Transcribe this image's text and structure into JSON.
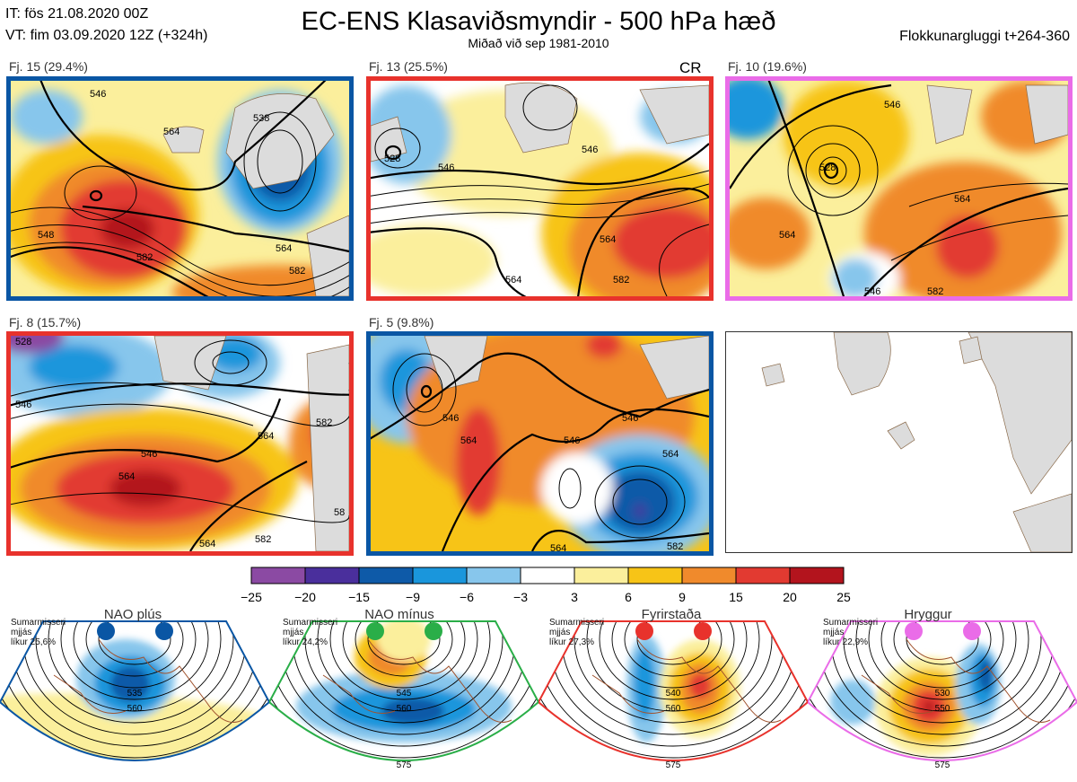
{
  "header": {
    "it_line": "IT: fös 21.08.2020 00Z",
    "vt_line": "VT: fim 03.09.2020 12Z  (+324h)",
    "title": "EC-ENS Klasaviðsmyndir - 500 hPa hæð",
    "subtitle": "Miðað við sep 1981-2010",
    "window": "Flokkunargluggi t+264-360"
  },
  "clusters": [
    {
      "label": "Fj. 15 (29.4%)",
      "border_color": "#0a56a4",
      "contours": [
        "546",
        "538",
        "564",
        "548",
        "546",
        "564",
        "582",
        "582"
      ]
    },
    {
      "label": "Fj. 13 (25.5%)",
      "border_color": "#e8322c",
      "tag": "CR",
      "contours": [
        "528",
        "546",
        "546",
        "564",
        "564",
        "582"
      ]
    },
    {
      "label": "Fj. 10 (19.6%)",
      "border_color": "#ea6ce8",
      "contours": [
        "546",
        "528",
        "564",
        "564",
        "546",
        "582"
      ]
    },
    {
      "label": "Fj. 8 (15.7%)",
      "border_color": "#e8322c",
      "contours": [
        "528",
        "546",
        "546",
        "564",
        "582",
        "564",
        "582",
        "564",
        "58"
      ]
    },
    {
      "label": "Fj. 5 (9.8%)",
      "border_color": "#0a56a4",
      "contours": [
        "546",
        "546",
        "564",
        "546",
        "564",
        "564",
        "582"
      ]
    }
  ],
  "colorbar": {
    "ticks": [
      "−25",
      "−20",
      "−15",
      "−9",
      "−6",
      "−3",
      "3",
      "6",
      "9",
      "15",
      "20",
      "25"
    ],
    "colors": [
      "#8b4aa3",
      "#4a2f9c",
      "#0e5aa8",
      "#1a96dc",
      "#87c6ec",
      "#ffffff",
      "#fbef9c",
      "#f7c417",
      "#f08a2c",
      "#e23a31",
      "#b3141d"
    ]
  },
  "regimes": [
    {
      "name": "NAO plús",
      "season": "Sumarmisseri",
      "mean": "mjjás",
      "prob": "líkur 25,6%",
      "color": "#0a56a4",
      "contours": [
        "535",
        "560"
      ]
    },
    {
      "name": "NAO mínus",
      "season": "Sumarmisseri",
      "mean": "mjjás",
      "prob": "líkur 24,2%",
      "color": "#2aae48",
      "contours": [
        "545",
        "560",
        "575"
      ]
    },
    {
      "name": "Fyrirstaða",
      "season": "Sumarmisseri",
      "mean": "mjjás",
      "prob": "líkur 27,3%",
      "color": "#e8322c",
      "contours": [
        "540",
        "560",
        "575"
      ]
    },
    {
      "name": "Hryggur",
      "season": "Sumarmisseri",
      "mean": "mjjás",
      "prob": "líkur 22,9%",
      "color": "#ea6ce8",
      "contours": [
        "530",
        "550",
        "575"
      ]
    }
  ],
  "chart_data": [
    {
      "type": "heatmap",
      "title": "EC-ENS Klasaviðsmyndir - 500 hPa hæð",
      "colorbar_ticks": [
        -25,
        -20,
        -15,
        -9,
        -6,
        -3,
        3,
        6,
        9,
        15,
        20,
        25
      ],
      "panels": [
        {
          "name": "Fj. 15",
          "probability": 29.4
        },
        {
          "name": "Fj. 13",
          "probability": 25.5
        },
        {
          "name": "Fj. 10",
          "probability": 19.6
        },
        {
          "name": "Fj. 8",
          "probability": 15.7
        },
        {
          "name": "Fj. 5",
          "probability": 9.8
        }
      ]
    },
    {
      "type": "heatmap",
      "title": "Sumarmisseri mjjás",
      "regimes": [
        {
          "name": "NAO plús",
          "probability": 25.6
        },
        {
          "name": "NAO mínus",
          "probability": 24.2
        },
        {
          "name": "Fyrirstaða",
          "probability": 27.3
        },
        {
          "name": "Hryggur",
          "probability": 22.9
        }
      ]
    }
  ]
}
